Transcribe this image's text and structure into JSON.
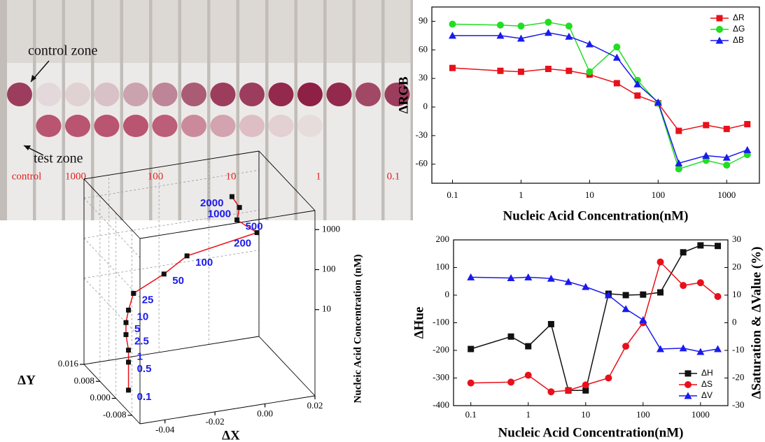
{
  "photo": {
    "annotations": [
      "control zone",
      "test zone"
    ],
    "lane_labels": [
      "control",
      "1000",
      "100",
      "10",
      "1",
      "0.1"
    ]
  },
  "chart_data": [
    {
      "type": "line",
      "x_label": "Nucleic Acid Concentration(nM)",
      "y_label": "ΔRGB",
      "log_x": true,
      "x": [
        0.1,
        0.5,
        1,
        2.5,
        5,
        10,
        25,
        50,
        100,
        200,
        500,
        1000,
        2000
      ],
      "xlim": [
        0.05,
        3000
      ],
      "xticks": [
        0.1,
        1,
        10,
        100,
        1000
      ],
      "ylim": [
        -80,
        105
      ],
      "yticks": [
        -60,
        -30,
        0,
        30,
        60,
        90
      ],
      "legend": "upper right",
      "series": [
        {
          "name": "ΔR",
          "color": "#e8101a",
          "marker": "square",
          "values": [
            41,
            38,
            37,
            40,
            38,
            34,
            25,
            12,
            4,
            -25,
            -19,
            -23,
            -18
          ]
        },
        {
          "name": "ΔG",
          "color": "#22dd22",
          "marker": "circle",
          "values": [
            87,
            86,
            85,
            89,
            85,
            37,
            63,
            28,
            4,
            -65,
            -56,
            -61,
            -50
          ]
        },
        {
          "name": "ΔB",
          "color": "#1a1aee",
          "marker": "triangle",
          "values": [
            75,
            75,
            72,
            78,
            74,
            66,
            52,
            24,
            5,
            -59,
            -51,
            -53,
            -45
          ]
        }
      ]
    },
    {
      "type": "line",
      "x_label": "Nucleic Acid Concentration(nM)",
      "y_label": "ΔHue",
      "y2_label": "ΔSaturation & ΔValue (%)",
      "log_x": true,
      "x": [
        0.1,
        0.5,
        1,
        2.5,
        5,
        10,
        25,
        50,
        100,
        200,
        500,
        1000,
        2000
      ],
      "xlim": [
        0.05,
        3000
      ],
      "xticks": [
        0.1,
        1,
        10,
        100,
        1000
      ],
      "ylim": [
        -400,
        200
      ],
      "yticks": [
        -400,
        -300,
        -200,
        -100,
        0,
        100,
        200
      ],
      "y2lim": [
        -30,
        30
      ],
      "y2ticks": [
        -30,
        -20,
        -10,
        0,
        10,
        20,
        30
      ],
      "legend": "lower right",
      "series": [
        {
          "name": "ΔH",
          "color": "#111111",
          "marker": "square",
          "values": [
            -195,
            -150,
            -185,
            -105,
            -345,
            -345,
            5,
            0,
            2,
            10,
            155,
            180,
            178
          ]
        },
        {
          "name": "ΔS",
          "color": "#e8101a",
          "marker": "circle",
          "axis": "y2",
          "values": [
            -21.8,
            -21.5,
            -19,
            -25,
            -24.5,
            -22.5,
            -20,
            -8.5,
            0,
            22,
            13.5,
            14.5,
            9.5
          ]
        },
        {
          "name": "ΔV",
          "color": "#1a1aee",
          "marker": "triangle",
          "axis": "y2",
          "values": [
            16.5,
            16.2,
            16.5,
            16,
            14.8,
            13,
            10,
            5,
            1,
            -9.5,
            -9.2,
            -10.5,
            -9.5
          ]
        }
      ]
    },
    {
      "type": "scatter3d",
      "x_label": "ΔX",
      "y_label": "ΔY",
      "z_label": "Nucleic Acid Concentration (nM)",
      "log_z": true,
      "color": "#e8101a",
      "label_color": "#1a1aee",
      "x": [
        -0.045,
        -0.045,
        -0.045,
        -0.046,
        -0.046,
        -0.045,
        -0.043,
        -0.03,
        -0.02,
        0.008,
        0.0,
        0.001,
        -0.002
      ],
      "y": [
        0.0,
        0.0,
        0.0,
        0.0,
        0.0,
        0.0,
        0.0,
        0.001,
        0.002,
        0.002,
        0.002,
        0.002,
        0.002
      ],
      "z": [
        0.1,
        0.5,
        1,
        2.5,
        5,
        10,
        25,
        50,
        100,
        200,
        500,
        1000,
        2000
      ],
      "xlim": [
        -0.05,
        0.02
      ],
      "xticks": [
        -0.04,
        -0.02,
        {
          "value": 0,
          "label": "0.00"
        },
        0.02
      ],
      "ylim": [
        -0.012,
        0.016
      ],
      "yticks": [
        -0.008,
        {
          "value": 0,
          "label": "0.000"
        },
        0.008,
        0.016
      ],
      "zlim": [
        0.07,
        3000
      ],
      "zticks": [
        10,
        100,
        1000
      ],
      "grid": true
    }
  ]
}
